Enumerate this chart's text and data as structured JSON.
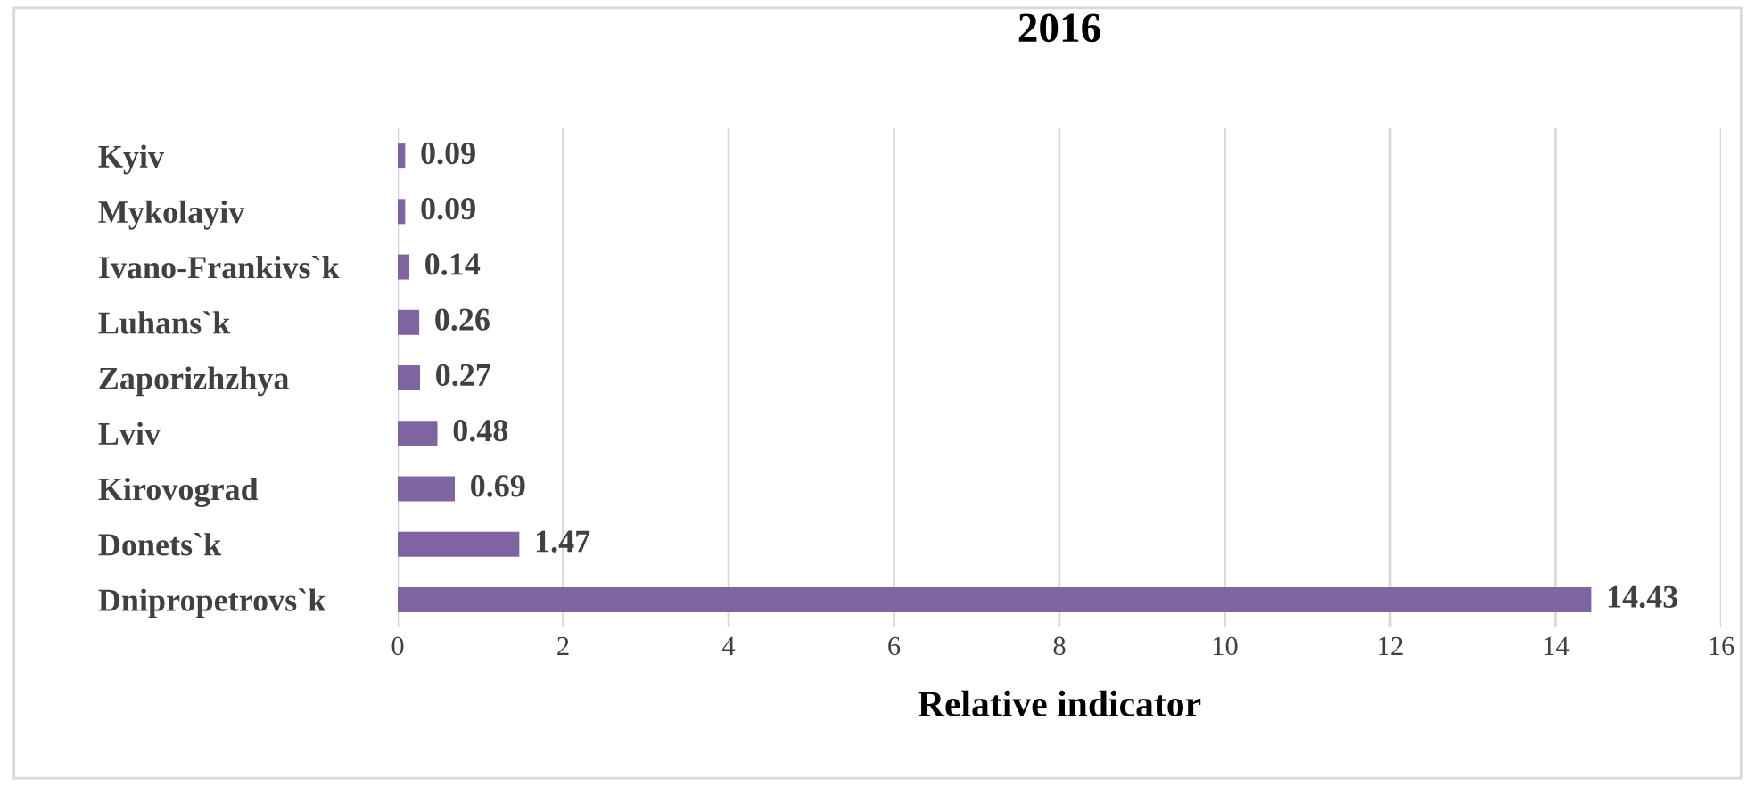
{
  "chart_data": {
    "type": "bar",
    "orientation": "horizontal",
    "title": "2016",
    "xlabel": "Relative indicator",
    "categories": [
      "Kyiv",
      "Mykolayiv",
      "Ivano-Frankivs`k",
      "Luhans`k",
      "Zaporizhzhya",
      "Lviv",
      "Kirovograd",
      "Donets`k",
      "Dnipropetrovs`k"
    ],
    "values": [
      0.09,
      0.09,
      0.14,
      0.26,
      0.27,
      0.48,
      0.69,
      1.47,
      14.43
    ],
    "color": "#8064a2",
    "xlim": [
      0,
      16
    ],
    "xticks": [
      0,
      2,
      4,
      6,
      8,
      10,
      12,
      14,
      16
    ],
    "grid": "x",
    "data_labels": true
  }
}
